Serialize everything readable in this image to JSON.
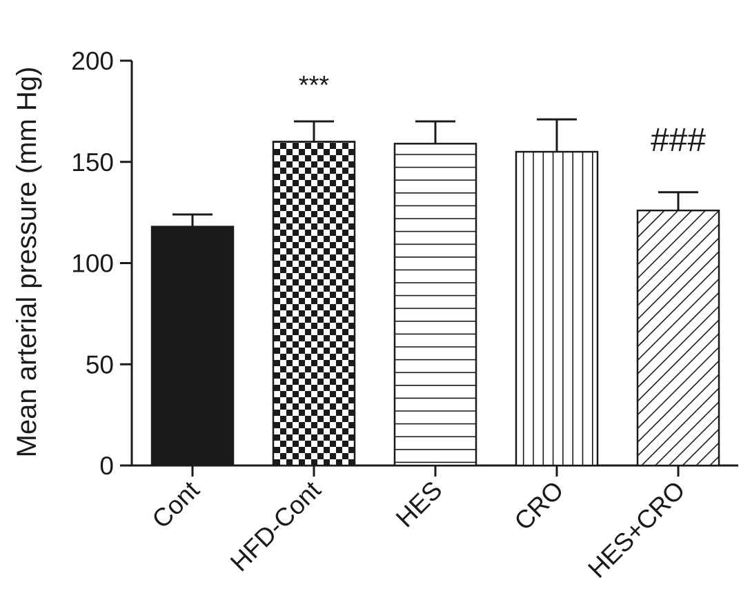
{
  "chart_data": {
    "type": "bar",
    "title": "",
    "xlabel": "",
    "ylabel": "Mean arterial pressure (mm Hg)",
    "ylim": [
      0,
      200
    ],
    "yticks": [
      0,
      50,
      100,
      150,
      200
    ],
    "categories": [
      "Cont",
      "HFD-Cont",
      "HES",
      "CRO",
      "HES+CRO"
    ],
    "values": [
      118,
      160,
      159,
      155,
      126
    ],
    "error": [
      6,
      10,
      11,
      16,
      9
    ],
    "patterns": [
      "solid-black",
      "checkerboard",
      "horizontal-lines",
      "vertical-lines",
      "diagonal-lines"
    ],
    "annotations": [
      {
        "category": "HFD-Cont",
        "text": "***"
      },
      {
        "category": "HES+CRO",
        "text": "###"
      }
    ],
    "grid": false,
    "colors": {
      "ink": "#1a1a1a",
      "background": "#ffffff"
    }
  }
}
